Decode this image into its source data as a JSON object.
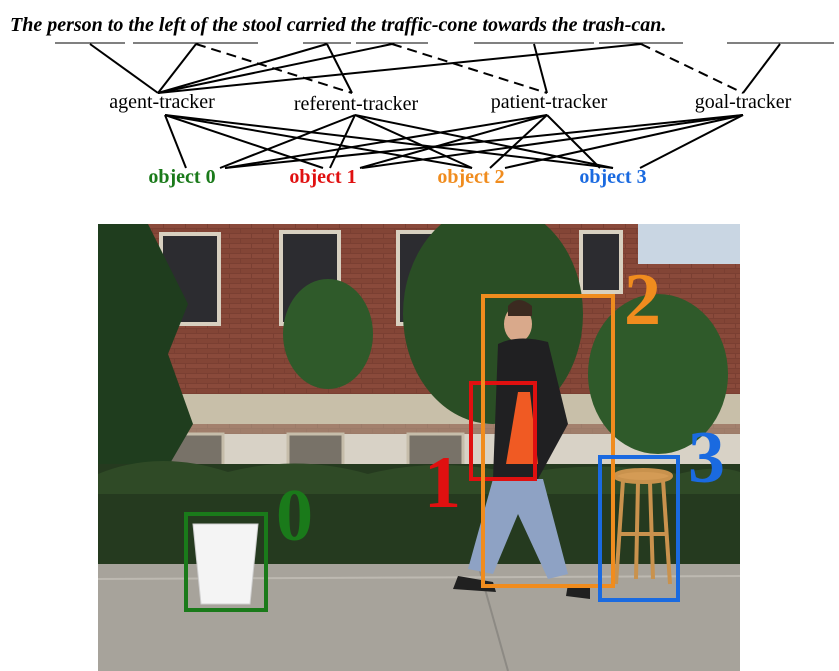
{
  "sentence": {
    "prefix": "The ",
    "words": [
      "person",
      "to the left of",
      "the",
      "stool",
      "carried",
      "the",
      "traffic-cone",
      "towards",
      "the",
      "trash-can."
    ]
  },
  "trackers": [
    "agent-tracker",
    "referent-tracker",
    "patient-tracker",
    "goal-tracker"
  ],
  "objects": [
    {
      "label": "object 0",
      "color": "#1a7a1a",
      "id": "0"
    },
    {
      "label": "object 1",
      "color": "#e01010",
      "id": "1"
    },
    {
      "label": "object 2",
      "color": "#f08c1e",
      "id": "2"
    },
    {
      "label": "object 3",
      "color": "#1a6ae0",
      "id": "3"
    }
  ],
  "box_labels": [
    "0",
    "1",
    "2",
    "3"
  ]
}
